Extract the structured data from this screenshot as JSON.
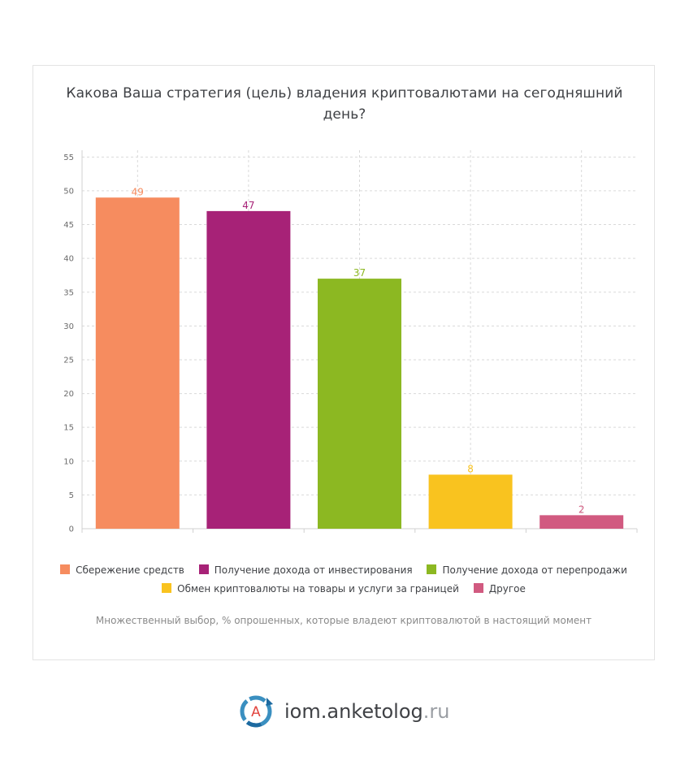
{
  "title": "Какова Ваша стратегия (цель) владения криптовалютами на сегодняшний день?",
  "chart_data": {
    "type": "bar",
    "categories": [
      "Сбережение средств",
      "Получение дохода от инвестирования",
      "Получение дохода от перепродажи",
      "Обмен криптовалюты на товары и услуги за границей",
      "Другое"
    ],
    "values": [
      49,
      47,
      37,
      8,
      2
    ],
    "colors": [
      "#f68c5f",
      "#a72277",
      "#8cb822",
      "#f9c31f",
      "#d15a80"
    ],
    "ylim": [
      0,
      56
    ],
    "yticks": [
      0,
      5,
      10,
      15,
      20,
      25,
      30,
      35,
      40,
      45,
      50,
      55
    ],
    "grid": true,
    "legend_position": "bottom"
  },
  "note": "Множественный выбор, % опрошенных, которые владеют криптовалютой в настоящий момент",
  "brand": {
    "name": "iom.anketolog",
    "tld": ".ru",
    "logo_letter": "A"
  }
}
